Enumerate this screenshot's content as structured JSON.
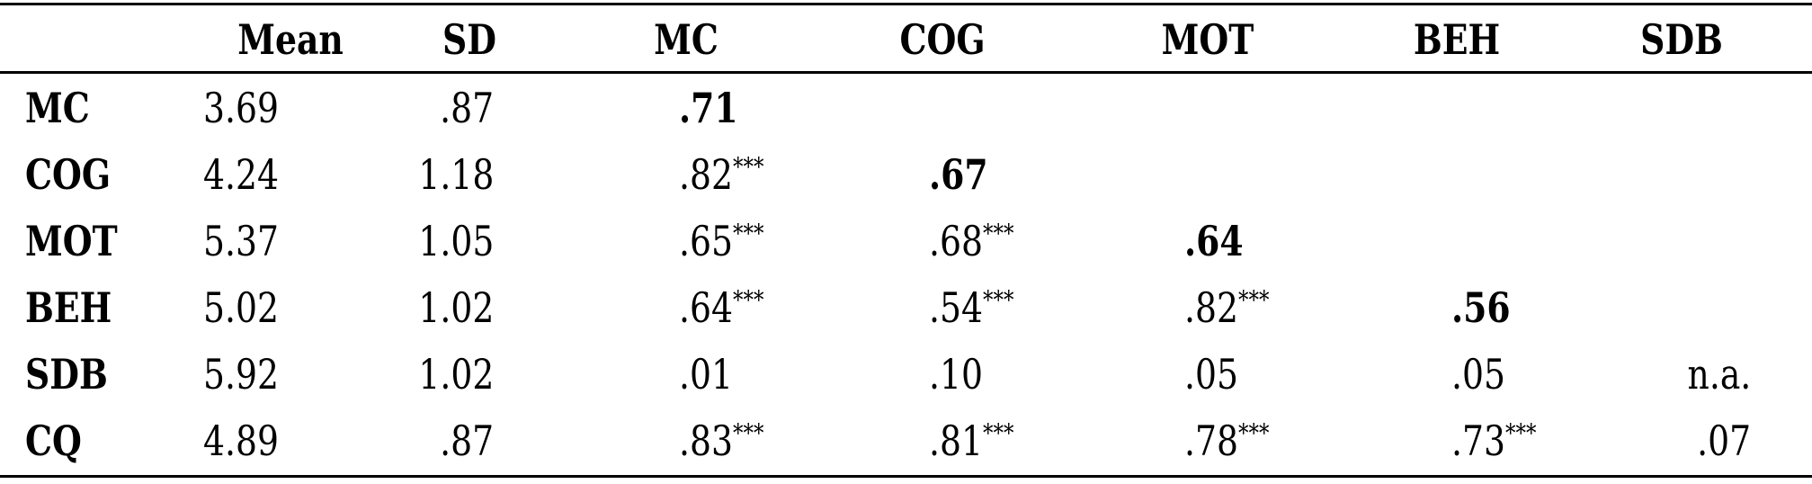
{
  "table": {
    "columns": [
      "",
      "Mean",
      "SD",
      "MC",
      "COG",
      "MOT",
      "BEH",
      "SDB"
    ],
    "rows": [
      {
        "label": "MC",
        "mean": "3.69",
        "sd": ".87",
        "corr": [
          {
            "v": ".71",
            "bold": true
          }
        ]
      },
      {
        "label": "COG",
        "mean": "4.24",
        "sd": "1.18",
        "corr": [
          {
            "v": ".82",
            "sig": "***"
          },
          {
            "v": ".67",
            "bold": true
          }
        ]
      },
      {
        "label": "MOT",
        "mean": "5.37",
        "sd": "1.05",
        "corr": [
          {
            "v": ".65",
            "sig": "***"
          },
          {
            "v": ".68",
            "sig": "***"
          },
          {
            "v": ".64",
            "bold": true
          }
        ]
      },
      {
        "label": "BEH",
        "mean": "5.02",
        "sd": "1.02",
        "corr": [
          {
            "v": ".64",
            "sig": "***"
          },
          {
            "v": ".54",
            "sig": "***"
          },
          {
            "v": ".82",
            "sig": "***"
          },
          {
            "v": ".56",
            "bold": true
          }
        ]
      },
      {
        "label": "SDB",
        "mean": "5.92",
        "sd": "1.02",
        "corr": [
          {
            "v": ".01"
          },
          {
            "v": ".10"
          },
          {
            "v": ".05"
          },
          {
            "v": ".05"
          },
          {
            "v": "n.a."
          }
        ]
      },
      {
        "label": "CQ",
        "mean": "4.89",
        "sd": ".87",
        "corr": [
          {
            "v": ".83",
            "sig": "***"
          },
          {
            "v": ".81",
            "sig": "***"
          },
          {
            "v": ".78",
            "sig": "***"
          },
          {
            "v": ".73",
            "sig": "***"
          },
          {
            "v": ".07"
          }
        ]
      }
    ]
  }
}
